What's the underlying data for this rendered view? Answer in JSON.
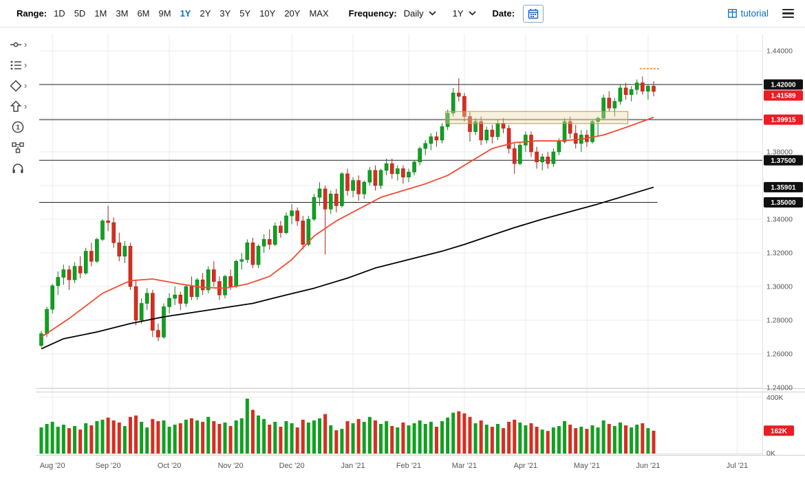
{
  "toolbar": {
    "range_label": "Range:",
    "ranges": [
      "1D",
      "5D",
      "1M",
      "3M",
      "6M",
      "9M",
      "1Y",
      "2Y",
      "3Y",
      "5Y",
      "10Y",
      "20Y",
      "MAX"
    ],
    "active_range": "1Y",
    "frequency_label": "Frequency:",
    "frequency_value": "Daily",
    "period_value": "1Y",
    "date_label": "Date:",
    "tutorial_label": "tutorial",
    "accent_color": "#0b6dc7"
  },
  "sidebar": {
    "tools": [
      {
        "name": "trend-line-tools"
      },
      {
        "name": "indicator-tools"
      },
      {
        "name": "shape-tools"
      },
      {
        "name": "arrow-tools"
      },
      {
        "name": "annotation-number-tool"
      },
      {
        "name": "pattern-tools"
      },
      {
        "name": "support"
      }
    ]
  },
  "icons": {
    "calendar": "calendar-icon",
    "tutorial_grid": "tutorial-grid-icon",
    "menu": "hamburger-menu-icon",
    "dropdown": "chevron-down-icon",
    "tool_expand": "chevron-right-icon"
  },
  "chart_data": {
    "type": "candlestick",
    "frequency": "Daily",
    "range": "1Y",
    "y_axis": {
      "min": 1.24,
      "max": 1.44,
      "step": 0.02,
      "labels": [
        {
          "price": 1.44,
          "label": "1.44000"
        },
        {
          "price": 1.38,
          "label": "1.38000"
        },
        {
          "price": 1.34,
          "label": "1.34000"
        },
        {
          "price": 1.32,
          "label": "1.32000"
        },
        {
          "price": 1.3,
          "label": "1.30000"
        },
        {
          "price": 1.28,
          "label": "1.28000"
        },
        {
          "price": 1.26,
          "label": "1.26000"
        },
        {
          "price": 1.24,
          "label": "1.24000"
        }
      ]
    },
    "price_badges": [
      {
        "price": 1.42,
        "label": "1.42000",
        "type": "dark"
      },
      {
        "price": 1.41589,
        "label": "1.41589",
        "type": "red"
      },
      {
        "price": 1.39915,
        "label": "1.39915",
        "type": "red"
      },
      {
        "price": 1.375,
        "label": "1.37500",
        "type": "dark"
      },
      {
        "price": 1.35901,
        "label": "1.35901",
        "type": "dark"
      },
      {
        "price": 1.35,
        "label": "1.35000",
        "type": "dark"
      }
    ],
    "hlines": [
      {
        "price": 1.42,
        "x2_frac": 1.0
      },
      {
        "price": 1.39915,
        "x2_frac": 1.0
      },
      {
        "price": 1.375,
        "x2_frac": 1.0
      },
      {
        "price": 1.35,
        "x2_frac": 0.855
      }
    ],
    "rect_annotation": {
      "i0": 73,
      "i1": 105,
      "top": 1.404,
      "bottom": 1.3968
    },
    "alert_dash": {
      "price": 1.4294,
      "i0": 108,
      "i1": 111
    },
    "x_ticks": [
      {
        "label": "Aug '20",
        "i": 2
      },
      {
        "label": "Sep '20",
        "i": 12
      },
      {
        "label": "Oct '20",
        "i": 23
      },
      {
        "label": "Nov '20",
        "i": 34
      },
      {
        "label": "Dec '20",
        "i": 45
      },
      {
        "label": "Jan '21",
        "i": 56
      },
      {
        "label": "Feb '21",
        "i": 66
      },
      {
        "label": "Mar '21",
        "i": 76
      },
      {
        "label": "Apr '21",
        "i": 87
      },
      {
        "label": "May '21",
        "i": 98
      },
      {
        "label": "Jun '21",
        "i": 109
      },
      {
        "label": "Jul '21",
        "i": 125
      }
    ],
    "ma_fast": [
      [
        0,
        1.27
      ],
      [
        5,
        1.281
      ],
      [
        11,
        1.296
      ],
      [
        16,
        1.3035
      ],
      [
        20,
        1.3045
      ],
      [
        25,
        1.3015
      ],
      [
        29,
        1.2995
      ],
      [
        33,
        1.299
      ],
      [
        37,
        1.3015
      ],
      [
        41,
        1.306
      ],
      [
        45,
        1.316
      ],
      [
        49,
        1.33
      ],
      [
        53,
        1.339
      ],
      [
        57,
        1.346
      ],
      [
        61,
        1.353
      ],
      [
        65,
        1.357
      ],
      [
        69,
        1.361
      ],
      [
        73,
        1.366
      ],
      [
        77,
        1.374
      ],
      [
        81,
        1.382
      ],
      [
        85,
        1.3855
      ],
      [
        89,
        1.3865
      ],
      [
        93,
        1.3865
      ],
      [
        97,
        1.3875
      ],
      [
        101,
        1.39
      ],
      [
        105,
        1.3945
      ],
      [
        110,
        1.4005
      ]
    ],
    "ma_slow": [
      [
        0,
        1.263
      ],
      [
        4,
        1.269
      ],
      [
        10,
        1.273
      ],
      [
        16,
        1.278
      ],
      [
        22,
        1.282
      ],
      [
        27,
        1.2845
      ],
      [
        33,
        1.2875
      ],
      [
        38,
        1.29
      ],
      [
        44,
        1.295
      ],
      [
        49,
        1.299
      ],
      [
        55,
        1.305
      ],
      [
        60,
        1.311
      ],
      [
        66,
        1.316
      ],
      [
        72,
        1.321
      ],
      [
        76,
        1.325
      ],
      [
        80,
        1.3295
      ],
      [
        85,
        1.335
      ],
      [
        90,
        1.34
      ],
      [
        95,
        1.3445
      ],
      [
        100,
        1.349
      ],
      [
        105,
        1.354
      ],
      [
        110,
        1.359
      ]
    ],
    "volume_axis": {
      "max": 400,
      "top_label": "400K",
      "bottom_label": "0K"
    },
    "volume_badge": {
      "value": 162,
      "label": "162K"
    },
    "colors": {
      "up": "#0fa11f",
      "up_stroke": "#0a7a18",
      "down": "#d62e20",
      "down_stroke": "#a92015",
      "ma_fast": "#f4492e",
      "ma_slow": "#000000",
      "grid": "#ebebeb",
      "hline": "#1f1f1f",
      "axis_text": "#555555",
      "badge_red": "#ea1c24",
      "badge_dark": "#101010",
      "annotation_fill": "#edd9a3",
      "annotation_border": "#b49b5e",
      "alert": "#ff8124",
      "separator": "#cfcfcf"
    },
    "candles": [
      [
        1.265,
        1.2735,
        1.264,
        1.272,
        185
      ],
      [
        1.272,
        1.288,
        1.27,
        1.2865,
        210
      ],
      [
        1.2865,
        1.3015,
        1.284,
        1.3005,
        225
      ],
      [
        1.3005,
        1.309,
        1.295,
        1.3055,
        190
      ],
      [
        1.3055,
        1.313,
        1.301,
        1.31,
        205
      ],
      [
        1.31,
        1.3125,
        1.298,
        1.304,
        180
      ],
      [
        1.304,
        1.3145,
        1.302,
        1.312,
        195
      ],
      [
        1.312,
        1.318,
        1.305,
        1.308,
        170
      ],
      [
        1.308,
        1.323,
        1.307,
        1.321,
        215
      ],
      [
        1.321,
        1.326,
        1.312,
        1.315,
        200
      ],
      [
        1.315,
        1.329,
        1.314,
        1.328,
        230
      ],
      [
        1.328,
        1.34,
        1.327,
        1.339,
        240
      ],
      [
        1.339,
        1.348,
        1.333,
        1.338,
        255
      ],
      [
        1.338,
        1.341,
        1.323,
        1.326,
        235
      ],
      [
        1.326,
        1.332,
        1.315,
        1.318,
        220
      ],
      [
        1.318,
        1.327,
        1.314,
        1.324,
        195
      ],
      [
        1.324,
        1.326,
        1.298,
        1.3,
        260
      ],
      [
        1.3,
        1.304,
        1.277,
        1.28,
        270
      ],
      [
        1.28,
        1.293,
        1.278,
        1.29,
        225
      ],
      [
        1.29,
        1.299,
        1.286,
        1.296,
        185
      ],
      [
        1.296,
        1.298,
        1.27,
        1.274,
        245
      ],
      [
        1.274,
        1.278,
        1.2675,
        1.27,
        230
      ],
      [
        1.27,
        1.29,
        1.269,
        1.288,
        235
      ],
      [
        1.288,
        1.296,
        1.284,
        1.293,
        190
      ],
      [
        1.293,
        1.3,
        1.289,
        1.295,
        205
      ],
      [
        1.295,
        1.297,
        1.286,
        1.29,
        215
      ],
      [
        1.29,
        1.301,
        1.288,
        1.3,
        240
      ],
      [
        1.3,
        1.306,
        1.292,
        1.294,
        250
      ],
      [
        1.294,
        1.305,
        1.292,
        1.304,
        235
      ],
      [
        1.304,
        1.308,
        1.295,
        1.298,
        225
      ],
      [
        1.298,
        1.312,
        1.296,
        1.31,
        260
      ],
      [
        1.31,
        1.315,
        1.3,
        1.303,
        230
      ],
      [
        1.303,
        1.306,
        1.292,
        1.295,
        210
      ],
      [
        1.295,
        1.307,
        1.293,
        1.306,
        220
      ],
      [
        1.306,
        1.31,
        1.298,
        1.3,
        195
      ],
      [
        1.3,
        1.316,
        1.299,
        1.315,
        235
      ],
      [
        1.315,
        1.32,
        1.31,
        1.316,
        250
      ],
      [
        1.316,
        1.328,
        1.314,
        1.326,
        390
      ],
      [
        1.326,
        1.329,
        1.311,
        1.313,
        310
      ],
      [
        1.313,
        1.325,
        1.311,
        1.324,
        270
      ],
      [
        1.324,
        1.331,
        1.32,
        1.328,
        245
      ],
      [
        1.328,
        1.334,
        1.322,
        1.325,
        205
      ],
      [
        1.325,
        1.338,
        1.324,
        1.336,
        225
      ],
      [
        1.336,
        1.339,
        1.329,
        1.332,
        190
      ],
      [
        1.332,
        1.344,
        1.331,
        1.342,
        230
      ],
      [
        1.342,
        1.349,
        1.337,
        1.345,
        215
      ],
      [
        1.345,
        1.347,
        1.336,
        1.339,
        185
      ],
      [
        1.339,
        1.342,
        1.322,
        1.325,
        240
      ],
      [
        1.325,
        1.342,
        1.324,
        1.34,
        220
      ],
      [
        1.34,
        1.355,
        1.339,
        1.353,
        235
      ],
      [
        1.353,
        1.362,
        1.348,
        1.358,
        250
      ],
      [
        1.358,
        1.36,
        1.319,
        1.346,
        280
      ],
      [
        1.346,
        1.357,
        1.343,
        1.355,
        200
      ],
      [
        1.355,
        1.358,
        1.344,
        1.348,
        165
      ],
      [
        1.348,
        1.368,
        1.347,
        1.367,
        175
      ],
      [
        1.367,
        1.37,
        1.354,
        1.357,
        230
      ],
      [
        1.357,
        1.365,
        1.353,
        1.363,
        215
      ],
      [
        1.363,
        1.366,
        1.351,
        1.355,
        245
      ],
      [
        1.355,
        1.363,
        1.352,
        1.362,
        225
      ],
      [
        1.362,
        1.371,
        1.36,
        1.369,
        260
      ],
      [
        1.369,
        1.372,
        1.357,
        1.36,
        235
      ],
      [
        1.36,
        1.37,
        1.358,
        1.369,
        210
      ],
      [
        1.369,
        1.376,
        1.366,
        1.373,
        230
      ],
      [
        1.373,
        1.376,
        1.364,
        1.367,
        195
      ],
      [
        1.367,
        1.372,
        1.363,
        1.37,
        185
      ],
      [
        1.37,
        1.372,
        1.361,
        1.365,
        220
      ],
      [
        1.365,
        1.37,
        1.362,
        1.368,
        200
      ],
      [
        1.368,
        1.375,
        1.366,
        1.374,
        215
      ],
      [
        1.374,
        1.383,
        1.372,
        1.382,
        235
      ],
      [
        1.382,
        1.387,
        1.378,
        1.385,
        210
      ],
      [
        1.385,
        1.391,
        1.381,
        1.389,
        225
      ],
      [
        1.389,
        1.392,
        1.383,
        1.387,
        190
      ],
      [
        1.387,
        1.397,
        1.385,
        1.395,
        230
      ],
      [
        1.395,
        1.405,
        1.393,
        1.403,
        255
      ],
      [
        1.403,
        1.418,
        1.401,
        1.415,
        290
      ],
      [
        1.415,
        1.4237,
        1.41,
        1.413,
        300
      ],
      [
        1.413,
        1.415,
        1.398,
        1.401,
        285
      ],
      [
        1.401,
        1.404,
        1.386,
        1.392,
        260
      ],
      [
        1.392,
        1.4,
        1.39,
        1.398,
        215
      ],
      [
        1.398,
        1.401,
        1.384,
        1.387,
        235
      ],
      [
        1.387,
        1.395,
        1.385,
        1.393,
        205
      ],
      [
        1.393,
        1.396,
        1.385,
        1.389,
        190
      ],
      [
        1.389,
        1.399,
        1.387,
        1.397,
        210
      ],
      [
        1.397,
        1.4,
        1.391,
        1.394,
        180
      ],
      [
        1.394,
        1.396,
        1.379,
        1.382,
        225
      ],
      [
        1.382,
        1.385,
        1.367,
        1.373,
        240
      ],
      [
        1.373,
        1.386,
        1.372,
        1.384,
        220
      ],
      [
        1.384,
        1.392,
        1.38,
        1.39,
        200
      ],
      [
        1.39,
        1.392,
        1.377,
        1.38,
        215
      ],
      [
        1.38,
        1.383,
        1.37,
        1.374,
        190
      ],
      [
        1.374,
        1.379,
        1.369,
        1.377,
        170
      ],
      [
        1.377,
        1.38,
        1.37,
        1.373,
        160
      ],
      [
        1.373,
        1.382,
        1.371,
        1.38,
        185
      ],
      [
        1.38,
        1.388,
        1.378,
        1.386,
        195
      ],
      [
        1.386,
        1.4,
        1.385,
        1.398,
        230
      ],
      [
        1.398,
        1.401,
        1.388,
        1.391,
        205
      ],
      [
        1.391,
        1.396,
        1.382,
        1.385,
        180
      ],
      [
        1.385,
        1.393,
        1.38,
        1.39,
        190
      ],
      [
        1.39,
        1.393,
        1.383,
        1.386,
        175
      ],
      [
        1.386,
        1.399,
        1.385,
        1.398,
        200
      ],
      [
        1.398,
        1.401,
        1.389,
        1.4,
        185
      ],
      [
        1.4,
        1.414,
        1.399,
        1.412,
        235
      ],
      [
        1.412,
        1.416,
        1.404,
        1.406,
        210
      ],
      [
        1.406,
        1.412,
        1.401,
        1.41,
        195
      ],
      [
        1.41,
        1.42,
        1.408,
        1.418,
        220
      ],
      [
        1.418,
        1.421,
        1.411,
        1.414,
        200
      ],
      [
        1.414,
        1.419,
        1.41,
        1.417,
        185
      ],
      [
        1.417,
        1.423,
        1.414,
        1.421,
        205
      ],
      [
        1.421,
        1.4248,
        1.414,
        1.416,
        215
      ],
      [
        1.416,
        1.42,
        1.411,
        1.419,
        180
      ],
      [
        1.419,
        1.422,
        1.413,
        1.4159,
        162
      ]
    ]
  }
}
